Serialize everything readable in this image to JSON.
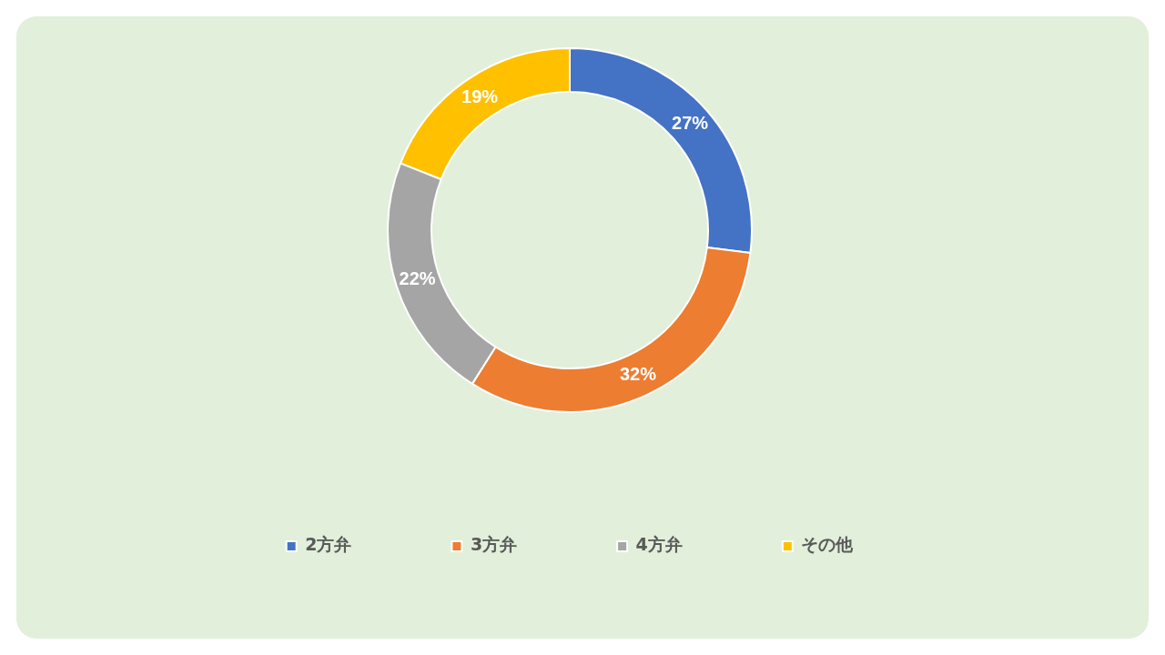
{
  "chart_data": {
    "type": "donut",
    "categories": [
      "2方弁",
      "3方弁",
      "4方弁",
      "その他"
    ],
    "values": [
      27,
      32,
      22,
      19
    ],
    "colors": [
      "#4472c4",
      "#ed7d31",
      "#a5a5a5",
      "#ffc000"
    ],
    "value_labels": [
      "27%",
      "32%",
      "22%",
      "19%"
    ],
    "legend": "bottom"
  }
}
